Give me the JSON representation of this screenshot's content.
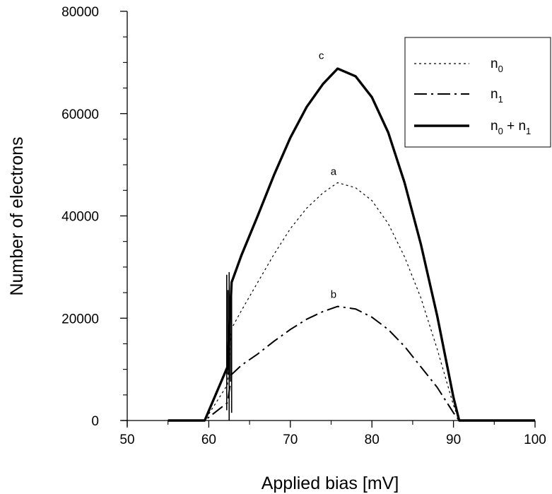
{
  "chart_data": {
    "type": "line",
    "title": "",
    "xlabel": "Applied bias  [mV]",
    "ylabel": "Number of electrons",
    "xlim": [
      50,
      100
    ],
    "ylim": [
      0,
      80000
    ],
    "x_ticks": [
      50,
      60,
      70,
      80,
      90,
      100
    ],
    "y_ticks": [
      0,
      20000,
      40000,
      60000,
      80000
    ],
    "x_tick_labels": [
      "50",
      "60",
      "70",
      "80",
      "90",
      "100"
    ],
    "y_tick_labels": [
      "0",
      "20000",
      "40000",
      "60000",
      "80000"
    ],
    "grid": false,
    "legend_position": "top-right",
    "series": [
      {
        "name": "n0",
        "legend_base": "n",
        "legend_sub": "0",
        "style": "dotted",
        "curve_label": "a",
        "x": [
          55,
          59.5,
          62.3,
          62.8,
          64,
          66,
          68,
          70,
          72,
          74,
          75.8,
          78,
          80,
          82,
          84,
          86,
          88,
          90,
          90.7,
          92,
          96,
          100
        ],
        "y": [
          0,
          0,
          7000,
          18000,
          21500,
          27000,
          32500,
          37500,
          41500,
          44500,
          46500,
          45500,
          43000,
          38500,
          32000,
          24000,
          14000,
          3000,
          0,
          0,
          0,
          0
        ]
      },
      {
        "name": "n1",
        "legend_base": "n",
        "legend_sub": "1",
        "style": "dashdot",
        "curve_label": "b",
        "x": [
          55,
          59.5,
          62.3,
          62.8,
          64,
          66,
          68,
          70,
          72,
          74,
          75.8,
          78,
          80,
          82,
          84,
          86,
          88,
          90,
          90.7,
          92,
          96,
          100
        ],
        "y": [
          0,
          0,
          3500,
          9000,
          10800,
          13000,
          15500,
          17800,
          19800,
          21300,
          22300,
          21800,
          20200,
          17800,
          14500,
          10500,
          6500,
          1500,
          0,
          0,
          0,
          0
        ]
      },
      {
        "name": "n0 + n1",
        "legend_base": "n",
        "legend_sub": "0",
        "legend_mid": " + n",
        "legend_sub2": "1",
        "style": "solid",
        "curve_label": "c",
        "x": [
          55,
          59.5,
          62.3,
          62.8,
          64,
          66,
          68,
          70,
          72,
          74,
          75.8,
          78,
          80,
          82,
          84,
          86,
          88,
          90,
          90.7,
          92,
          96,
          100
        ],
        "y": [
          0,
          0,
          10500,
          27000,
          32300,
          40000,
          48000,
          55300,
          61300,
          65800,
          68800,
          67300,
          63200,
          56300,
          46500,
          34500,
          20500,
          4500,
          0,
          0,
          0,
          0
        ]
      }
    ]
  }
}
